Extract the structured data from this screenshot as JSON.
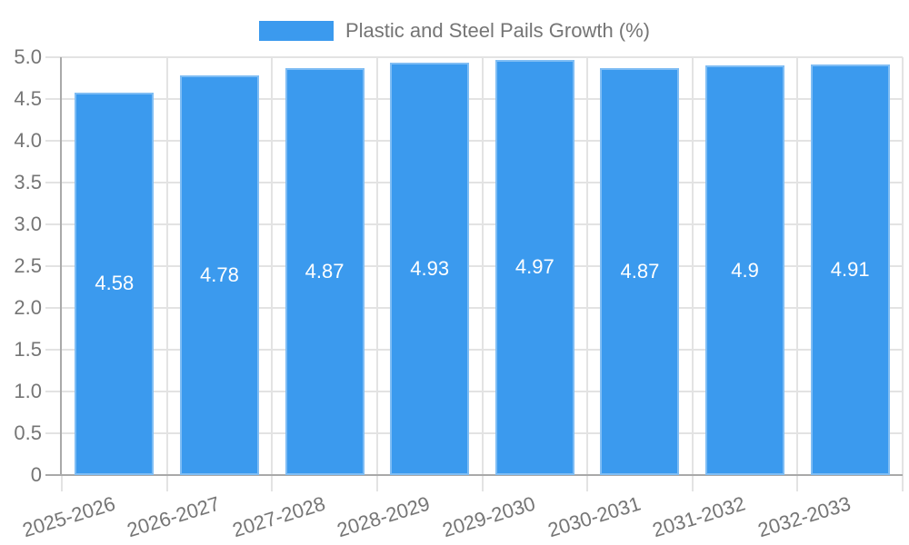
{
  "chart_data": {
    "type": "bar",
    "title": "Plastic and Steel Pails Growth (%)",
    "categories": [
      "2025-2026",
      "2026-2027",
      "2027-2028",
      "2028-2029",
      "2029-2030",
      "2030-2031",
      "2031-2032",
      "2032-2033"
    ],
    "values": [
      4.58,
      4.78,
      4.87,
      4.93,
      4.97,
      4.87,
      4.9,
      4.91
    ],
    "value_labels": [
      "4.58",
      "4.78",
      "4.87",
      "4.93",
      "4.97",
      "4.87",
      "4.9",
      "4.91"
    ],
    "xlabel": "",
    "ylabel": "",
    "ylim": [
      0,
      5
    ],
    "yticks": [
      0,
      0.5,
      1,
      1.5,
      2,
      2.5,
      3,
      3.5,
      4,
      4.5,
      5
    ],
    "ytick_labels": [
      "0",
      "0.5",
      "1.0",
      "1.5",
      "2.0",
      "2.5",
      "3.0",
      "3.5",
      "4.0",
      "4.5",
      "5.0"
    ],
    "grid": true,
    "legend_position": "top",
    "colors": {
      "bar": "#3b9aee",
      "value_label": "#ffffff",
      "tick_label": "#757575",
      "gridline": "#e3e3e3",
      "axis_line": "#a9a9a9",
      "background": "#ffffff"
    }
  }
}
